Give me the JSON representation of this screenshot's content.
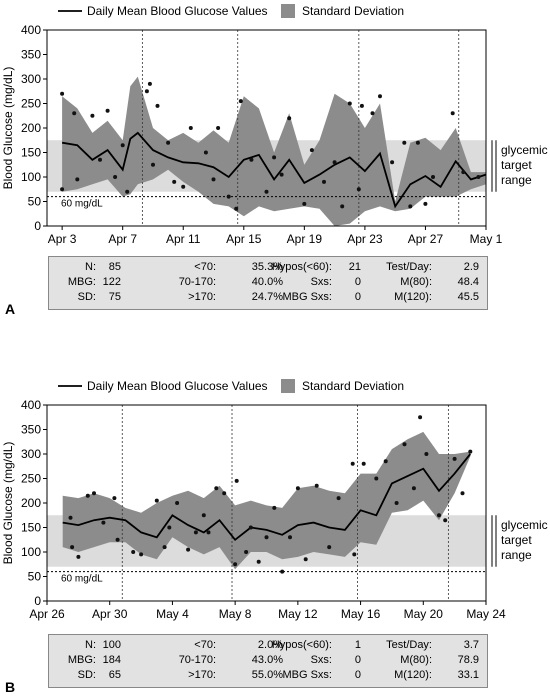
{
  "legend": {
    "mean_label": "Daily Mean Blood Glucose Values",
    "sd_label": "Standard Deviation"
  },
  "panels": [
    {
      "letter": "A",
      "stats": [
        [
          [
            "N:",
            "85"
          ],
          [
            "<70:",
            "35.3%"
          ],
          [
            "Hypos(<60):",
            "21"
          ],
          [
            "Test/Day:",
            "2.9"
          ]
        ],
        [
          [
            "MBG:",
            "122"
          ],
          [
            "70-170:",
            "40.0%"
          ],
          [
            "Sxs:",
            "0"
          ],
          [
            "M(80):",
            "48.4"
          ]
        ],
        [
          [
            "SD:",
            "75"
          ],
          [
            ">170:",
            "24.7%"
          ],
          [
            "MBG Sxs:",
            "0"
          ],
          [
            "M(120):",
            "45.5"
          ]
        ]
      ]
    },
    {
      "letter": "B",
      "stats": [
        [
          [
            "N:",
            "100"
          ],
          [
            "<70:",
            "2.0%"
          ],
          [
            "Hypos(<60):",
            "1"
          ],
          [
            "Test/Day:",
            "3.7"
          ]
        ],
        [
          [
            "MBG:",
            "184"
          ],
          [
            "70-170:",
            "43.0%"
          ],
          [
            "Sxs:",
            "0"
          ],
          [
            "M(80):",
            "78.9"
          ]
        ],
        [
          [
            "SD:",
            "65"
          ],
          [
            ">170:",
            "55.0%"
          ],
          [
            "MBG Sxs:",
            "0"
          ],
          [
            "M(120):",
            "33.1"
          ]
        ]
      ]
    }
  ],
  "chart_data": [
    {
      "type": "line",
      "ylabel": "Blood Glucose (mg/dL)",
      "xlabel": "",
      "ylim": [
        0,
        400
      ],
      "xlim": [
        2,
        31
      ],
      "yticks": [
        0,
        50,
        100,
        150,
        200,
        250,
        300,
        350,
        400
      ],
      "x_ticks": [
        {
          "x": 3,
          "label": "Apr 3"
        },
        {
          "x": 7,
          "label": "Apr 7"
        },
        {
          "x": 11,
          "label": "Apr 11"
        },
        {
          "x": 15,
          "label": "Apr 15"
        },
        {
          "x": 19,
          "label": "Apr 19"
        },
        {
          "x": 23,
          "label": "Apr 23"
        },
        {
          "x": 27,
          "label": "Apr 27"
        },
        {
          "x": 31,
          "label": "May 1"
        }
      ],
      "week_lines": [
        8.3,
        14.6,
        22.6,
        29.2
      ],
      "target_range": [
        70,
        175
      ],
      "target_label": [
        "glycemic",
        "target",
        "range"
      ],
      "hypo_line": {
        "value": 60,
        "label": "60 mg/dL"
      },
      "series": [
        {
          "name": "Daily Mean Blood Glucose Values",
          "x": [
            3,
            4,
            5,
            6,
            7,
            7.5,
            8,
            9,
            10,
            11,
            12,
            13,
            14,
            15,
            16,
            17,
            18,
            19,
            20,
            21,
            22,
            23,
            24,
            25,
            26,
            27,
            28,
            29,
            30,
            31
          ],
          "mean": [
            170,
            165,
            135,
            155,
            115,
            178,
            190,
            155,
            140,
            130,
            128,
            120,
            100,
            135,
            145,
            95,
            135,
            88,
            105,
            125,
            140,
            112,
            148,
            40,
            85,
            102,
            80,
            132,
            95,
            105
          ],
          "upper": [
            265,
            240,
            190,
            215,
            175,
            285,
            305,
            200,
            175,
            190,
            170,
            195,
            170,
            265,
            240,
            150,
            230,
            125,
            175,
            270,
            250,
            200,
            250,
            50,
            170,
            180,
            155,
            200,
            110,
            110
          ],
          "lower": [
            70,
            75,
            85,
            95,
            60,
            65,
            85,
            95,
            115,
            90,
            70,
            45,
            40,
            20,
            40,
            30,
            35,
            40,
            35,
            0,
            5,
            30,
            40,
            30,
            35,
            60,
            60,
            60,
            75,
            85
          ]
        },
        {
          "name": "Standard Deviation",
          "points": [
            [
              3,
              270
            ],
            [
              3,
              75
            ],
            [
              3.8,
              230
            ],
            [
              4,
              95
            ],
            [
              5,
              225
            ],
            [
              5.5,
              135
            ],
            [
              6,
              235
            ],
            [
              6.5,
              100
            ],
            [
              7,
              165
            ],
            [
              7.3,
              70
            ],
            [
              8.6,
              275
            ],
            [
              8.8,
              290
            ],
            [
              9,
              125
            ],
            [
              9.3,
              245
            ],
            [
              10,
              170
            ],
            [
              10.4,
              90
            ],
            [
              11,
              80
            ],
            [
              11.5,
              200
            ],
            [
              12.5,
              150
            ],
            [
              13,
              95
            ],
            [
              13.3,
              200
            ],
            [
              14,
              60
            ],
            [
              14.5,
              35
            ],
            [
              14.8,
              255
            ],
            [
              15.5,
              135
            ],
            [
              16.5,
              70
            ],
            [
              17,
              140
            ],
            [
              17.5,
              105
            ],
            [
              18,
              220
            ],
            [
              19,
              45
            ],
            [
              19.5,
              155
            ],
            [
              20.3,
              90
            ],
            [
              21,
              130
            ],
            [
              21.5,
              40
            ],
            [
              22,
              250
            ],
            [
              22.6,
              75
            ],
            [
              22.8,
              245
            ],
            [
              23.5,
              230
            ],
            [
              24,
              265
            ],
            [
              24.8,
              130
            ],
            [
              25.6,
              170
            ],
            [
              26,
              40
            ],
            [
              26.5,
              170
            ],
            [
              27,
              45
            ],
            [
              27.5,
              100
            ],
            [
              28.8,
              230
            ],
            [
              29.5,
              110
            ],
            [
              30.5,
              100
            ]
          ]
        }
      ]
    },
    {
      "type": "line",
      "ylabel": "Blood Glucose (mg/dL)",
      "xlabel": "",
      "ylim": [
        0,
        400
      ],
      "xlim": [
        26,
        54
      ],
      "yticks": [
        0,
        50,
        100,
        150,
        200,
        250,
        300,
        350,
        400
      ],
      "x_ticks": [
        {
          "x": 26,
          "label": "Apr 26"
        },
        {
          "x": 30,
          "label": "Apr 30"
        },
        {
          "x": 34,
          "label": "May 4"
        },
        {
          "x": 38,
          "label": "May 8"
        },
        {
          "x": 42,
          "label": "May 12"
        },
        {
          "x": 46,
          "label": "May 16"
        },
        {
          "x": 50,
          "label": "May 20"
        },
        {
          "x": 54,
          "label": "May 24"
        }
      ],
      "week_lines": [
        30.8,
        37.8,
        45.8,
        51.6
      ],
      "target_range": [
        70,
        175
      ],
      "target_label": [
        "glycemic",
        "target",
        "range"
      ],
      "hypo_line": {
        "value": 60,
        "label": "60 mg/dL"
      },
      "series": [
        {
          "name": "Daily Mean Blood Glucose Values",
          "x": [
            27,
            28,
            29,
            30,
            31,
            32,
            33,
            34,
            35,
            36,
            37,
            38,
            39,
            40,
            41,
            42,
            43,
            44,
            45,
            46,
            47,
            48,
            49,
            50,
            51,
            52,
            53
          ],
          "mean": [
            160,
            155,
            165,
            170,
            165,
            140,
            130,
            175,
            155,
            140,
            165,
            125,
            150,
            145,
            135,
            155,
            160,
            150,
            145,
            185,
            175,
            240,
            255,
            270,
            225,
            260,
            300
          ],
          "upper": [
            215,
            210,
            220,
            210,
            190,
            180,
            200,
            215,
            225,
            210,
            235,
            195,
            205,
            195,
            190,
            230,
            235,
            225,
            220,
            260,
            260,
            310,
            330,
            345,
            300,
            300,
            305
          ],
          "lower": [
            110,
            100,
            110,
            120,
            120,
            95,
            85,
            130,
            110,
            95,
            110,
            65,
            100,
            100,
            85,
            90,
            100,
            95,
            90,
            120,
            115,
            180,
            185,
            205,
            165,
            220,
            295
          ]
        },
        {
          "name": "Standard Deviation",
          "points": [
            [
              27.5,
              170
            ],
            [
              27.6,
              110
            ],
            [
              28,
              90
            ],
            [
              28.6,
              215
            ],
            [
              29,
              220
            ],
            [
              29.6,
              160
            ],
            [
              30.3,
              210
            ],
            [
              30.5,
              125
            ],
            [
              31.5,
              100
            ],
            [
              32,
              95
            ],
            [
              33,
              205
            ],
            [
              33.5,
              110
            ],
            [
              33.8,
              150
            ],
            [
              34.3,
              200
            ],
            [
              35,
              105
            ],
            [
              35.5,
              140
            ],
            [
              36,
              175
            ],
            [
              36.3,
              140
            ],
            [
              36.8,
              230
            ],
            [
              37.3,
              220
            ],
            [
              38,
              75
            ],
            [
              38.1,
              245
            ],
            [
              38.7,
              100
            ],
            [
              39,
              150
            ],
            [
              39.5,
              80
            ],
            [
              40,
              130
            ],
            [
              40.5,
              190
            ],
            [
              41,
              60
            ],
            [
              41.5,
              130
            ],
            [
              42,
              230
            ],
            [
              42.5,
              85
            ],
            [
              43.2,
              235
            ],
            [
              44,
              110
            ],
            [
              44.6,
              210
            ],
            [
              45.5,
              280
            ],
            [
              45.6,
              95
            ],
            [
              46.2,
              280
            ],
            [
              47,
              250
            ],
            [
              47.6,
              285
            ],
            [
              48.3,
              200
            ],
            [
              48.8,
              320
            ],
            [
              49.4,
              230
            ],
            [
              49.8,
              375
            ],
            [
              50.2,
              300
            ],
            [
              51,
              175
            ],
            [
              51.4,
              165
            ],
            [
              52,
              290
            ],
            [
              52.5,
              220
            ],
            [
              53,
              305
            ]
          ]
        }
      ]
    }
  ]
}
